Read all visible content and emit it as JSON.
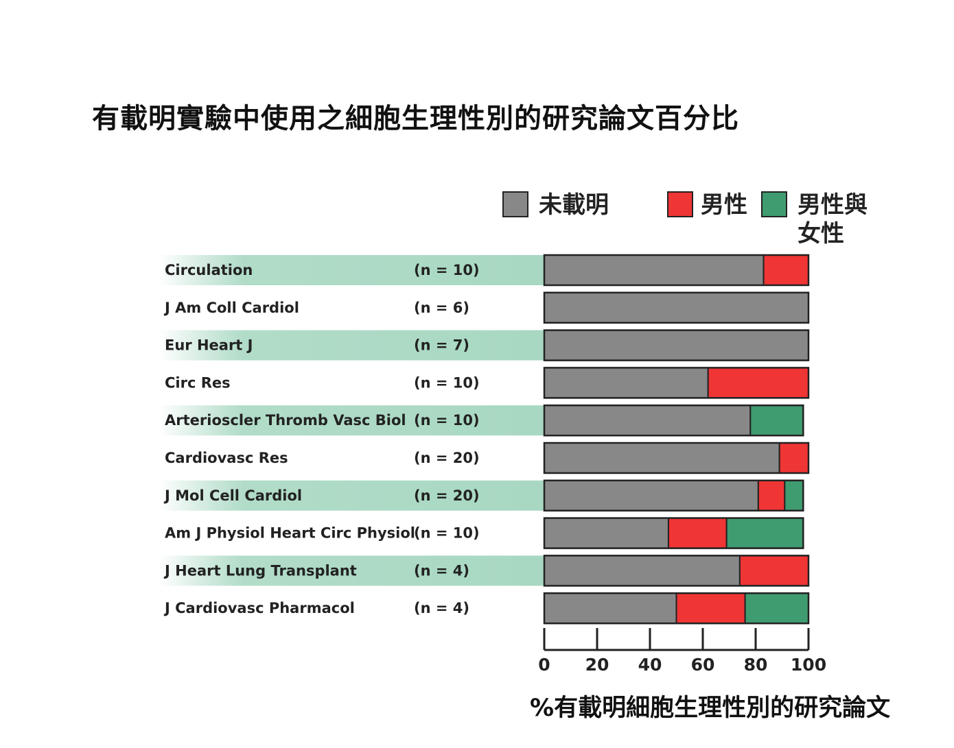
{
  "chart_data": {
    "type": "bar",
    "orientation": "horizontal",
    "stacked": true,
    "title": "有載明實驗中使用之細胞生理性別的研究論文百分比",
    "xlabel": "%有載明細胞生理性別的研究論文",
    "xlim": [
      0,
      100
    ],
    "xticks": [
      "0",
      "20",
      "40",
      "60",
      "80",
      "100"
    ],
    "legend_placement": "top-right",
    "categories": [
      "Circulation",
      "J Am Coll Cardiol",
      "Eur Heart J",
      "Circ Res",
      "Arterioscler Thromb Vasc Biol",
      "Cardiovasc Res",
      "J Mol Cell Cardiol",
      "Am J Physiol Heart Circ Physiol",
      "J Heart Lung Transplant",
      "J Cardiovasc Pharmacol"
    ],
    "n_labels": [
      "(n = 10)",
      "(n = 6)",
      "(n = 7)",
      "(n = 10)",
      "(n = 10)",
      "(n = 20)",
      "(n = 20)",
      "(n = 10)",
      "(n = 4)",
      "(n = 4)"
    ],
    "series": [
      {
        "name": "未載明",
        "color": "#888888",
        "values": [
          83,
          100,
          100,
          62,
          78,
          89,
          81,
          47,
          74,
          50
        ]
      },
      {
        "name": "男性",
        "color": "#f03535",
        "values": [
          17,
          0,
          0,
          38,
          0,
          11,
          10,
          22,
          26,
          26
        ]
      },
      {
        "name": "男性與女性",
        "color": "#3f9b70",
        "values": [
          0,
          0,
          0,
          0,
          20,
          0,
          7,
          29,
          0,
          24
        ]
      }
    ],
    "row_highlight_color": "#a8d8c2"
  }
}
